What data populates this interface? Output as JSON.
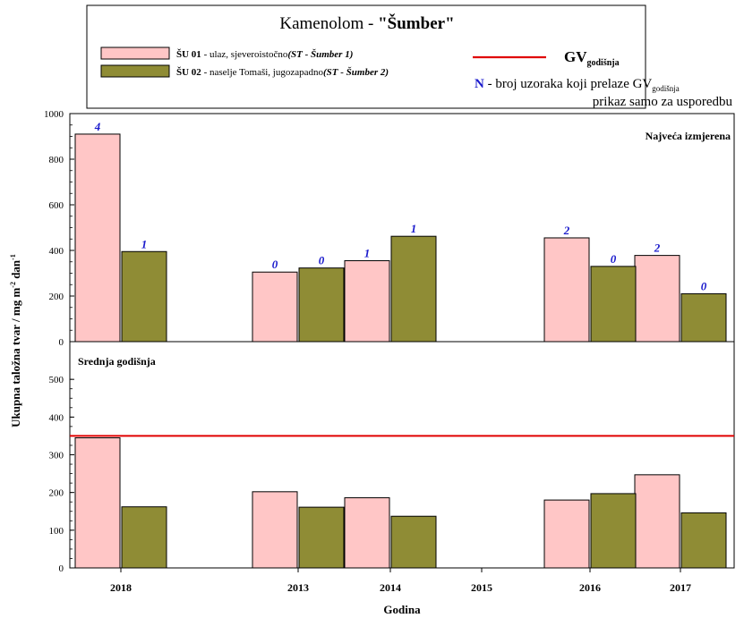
{
  "legend": {
    "title_prefix": "Kamenolom - ",
    "title_bold": "\"Šumber\"",
    "series1": {
      "code": "ŠU 01",
      "desc": " - ulaz, sjeveroistočno",
      "station": "(ST - Šumber 1)"
    },
    "series2": {
      "code": "ŠU 02",
      "desc": " - naselje Tomaši, jugozapadno",
      "station": "(ST - Šumber 2)"
    },
    "gv_label": "GV",
    "gv_sub": "godišnja",
    "n_letter": "N",
    "n_text": " - broj uzoraka koji prelaze GV",
    "n_sub": "godišnja",
    "note": "prikaz samo za usporedbu"
  },
  "colors": {
    "series1": "#ffc6c6",
    "series2": "#8f8c35",
    "gv_line": "#e00000",
    "n_label": "#1a1acc"
  },
  "chart_data": [
    {
      "type": "bar",
      "title": "Najveća izmjerena",
      "ylabel": "Ukupna taložna tvar / mg m-2 dan-1",
      "ylim": [
        0,
        1000
      ],
      "yticks": [
        0,
        200,
        400,
        600,
        800,
        1000
      ],
      "categories": [
        "2018",
        "",
        "2013",
        "2014",
        "2015",
        "2016",
        "2017"
      ],
      "series": [
        {
          "name": "ŠU 01",
          "values": [
            910,
            null,
            305,
            355,
            null,
            455,
            378
          ],
          "n_labels": [
            "4",
            "",
            "0",
            "1",
            "",
            "2",
            "2"
          ]
        },
        {
          "name": "ŠU 02",
          "values": [
            395,
            null,
            323,
            462,
            null,
            330,
            210
          ],
          "n_labels": [
            "1",
            "",
            "0",
            "1",
            "",
            "0",
            "0"
          ]
        }
      ]
    },
    {
      "type": "bar",
      "title": "Srednja godišnja",
      "xlabel": "Godina",
      "ylabel": "Ukupna taložna tvar / mg m-2 dan-1",
      "ylim": [
        0,
        600
      ],
      "yticks": [
        0,
        100,
        200,
        300,
        400,
        500
      ],
      "gv_value": 350,
      "categories": [
        "2018",
        "",
        "2013",
        "2014",
        "2015",
        "2016",
        "2017"
      ],
      "series": [
        {
          "name": "ŠU 01",
          "values": [
            345,
            null,
            202,
            186,
            null,
            180,
            247
          ]
        },
        {
          "name": "ŠU 02",
          "values": [
            162,
            null,
            161,
            137,
            null,
            197,
            146
          ]
        }
      ]
    }
  ],
  "axis": {
    "ylabel_main": "Ukupna taložna tvar / mg m",
    "ylabel_sup1": "-2",
    "ylabel_mid": " dan",
    "ylabel_sup2": "-1",
    "xlabel": "Godina"
  }
}
